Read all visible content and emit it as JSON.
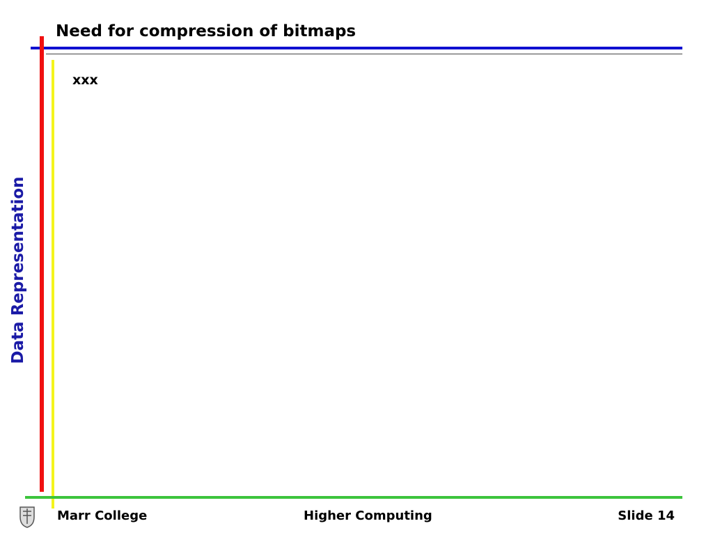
{
  "slide": {
    "title": "Need for compression of bitmaps",
    "side_label": "Data Representation",
    "body": "xxx",
    "footer": {
      "left": "Marr College",
      "center": "Higher Computing",
      "right": "Slide 14"
    }
  }
}
